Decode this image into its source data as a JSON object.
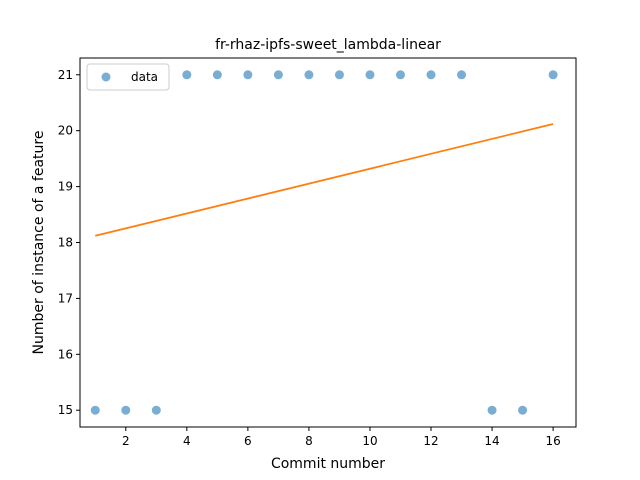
{
  "chart_data": {
    "type": "scatter",
    "title": "fr-rhaz-ipfs-sweet_lambda-linear",
    "xlabel": "Commit number",
    "ylabel": "Number of instance of a feature",
    "xlim": [
      0.5,
      16.75
    ],
    "ylim": [
      14.7,
      21.3
    ],
    "xticks": [
      2,
      4,
      6,
      8,
      10,
      12,
      14,
      16
    ],
    "yticks": [
      15,
      16,
      17,
      18,
      19,
      20,
      21
    ],
    "legend_position": "top-left",
    "series": [
      {
        "name": "data",
        "kind": "scatter",
        "color": "#1f77b4",
        "x": [
          1,
          2,
          3,
          4,
          5,
          6,
          7,
          8,
          9,
          10,
          11,
          12,
          13,
          14,
          15,
          16
        ],
        "y": [
          15,
          15,
          15,
          21,
          21,
          21,
          21,
          21,
          21,
          21,
          21,
          21,
          21,
          15,
          15,
          21
        ]
      },
      {
        "kind": "line",
        "color": "#ff7f0e",
        "x": [
          1,
          16
        ],
        "y": [
          18.12,
          20.12
        ]
      }
    ]
  }
}
